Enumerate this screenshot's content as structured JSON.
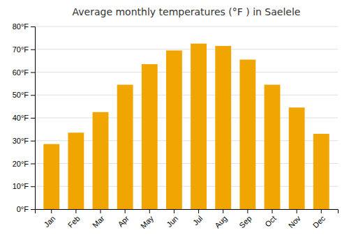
{
  "chart_data": {
    "type": "bar",
    "title": "Average monthly temperatures (°F ) in Saelele",
    "categories": [
      "Jan",
      "Feb",
      "Mar",
      "Apr",
      "May",
      "Jun",
      "Jul",
      "Aug",
      "Sep",
      "Oct",
      "Nov",
      "Dec"
    ],
    "values": [
      28.5,
      33.5,
      42.5,
      54.5,
      63.5,
      69.5,
      72.5,
      71.5,
      65.5,
      54.5,
      44.5,
      33.0
    ],
    "color": "#F0A500",
    "ylim": [
      0,
      80
    ],
    "yticks": [
      {
        "value": 0,
        "label": "0°F"
      },
      {
        "value": 10,
        "label": "10°F"
      },
      {
        "value": 20,
        "label": "20°F"
      },
      {
        "value": 30,
        "label": "30°F"
      },
      {
        "value": 40,
        "label": "40°F"
      },
      {
        "value": 50,
        "label": "50°F"
      },
      {
        "value": 60,
        "label": "60°F"
      },
      {
        "value": 70,
        "label": "70°F"
      },
      {
        "value": 80,
        "label": "80°F"
      }
    ],
    "grid": true
  }
}
